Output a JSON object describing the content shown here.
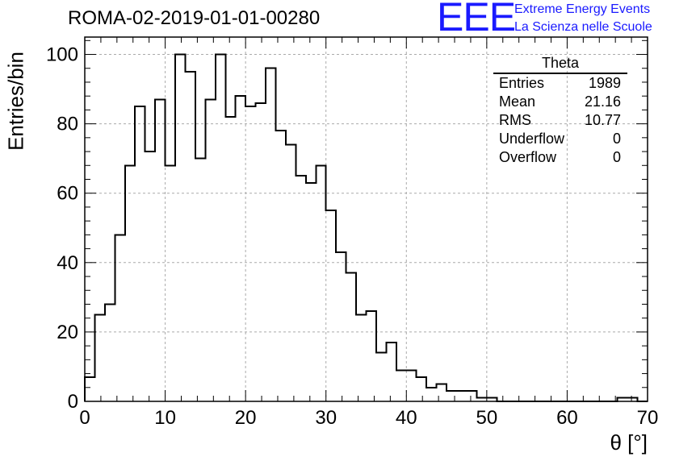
{
  "title": "ROMA-02-2019-01-01-00280",
  "logo": {
    "mark": "EEE",
    "line1": "Extreme Energy Events",
    "line2": "La Scienza nelle Scuole",
    "color": "#1a1aff"
  },
  "stats": {
    "title": "Theta",
    "rows": [
      {
        "label": "Entries",
        "value": "1989"
      },
      {
        "label": "Mean",
        "value": "21.16"
      },
      {
        "label": "RMS",
        "value": "10.77"
      },
      {
        "label": "Underflow",
        "value": "0"
      },
      {
        "label": "Overflow",
        "value": "0"
      }
    ]
  },
  "chart_data": {
    "type": "histogram",
    "xlabel": "θ [°]",
    "ylabel": "Entries/bin",
    "xlim": [
      0,
      70
    ],
    "ylim": [
      0,
      105
    ],
    "x_ticks": [
      0,
      10,
      20,
      30,
      40,
      50,
      60,
      70
    ],
    "y_ticks": [
      0,
      20,
      40,
      60,
      80,
      100
    ],
    "grid": true,
    "bin_width": 1.25,
    "bin_edges_start": 0,
    "values": [
      7,
      25,
      28,
      48,
      68,
      85,
      72,
      87,
      68,
      100,
      95,
      70,
      87,
      100,
      82,
      88,
      85,
      86,
      96,
      78,
      74,
      65,
      63,
      68,
      55,
      43,
      37,
      25,
      26,
      14,
      17,
      9,
      9,
      7,
      4,
      5,
      3,
      3,
      3,
      1,
      1,
      0,
      0,
      0,
      0,
      0,
      0,
      0,
      0,
      0,
      0,
      0,
      0,
      1,
      1,
      0
    ]
  }
}
